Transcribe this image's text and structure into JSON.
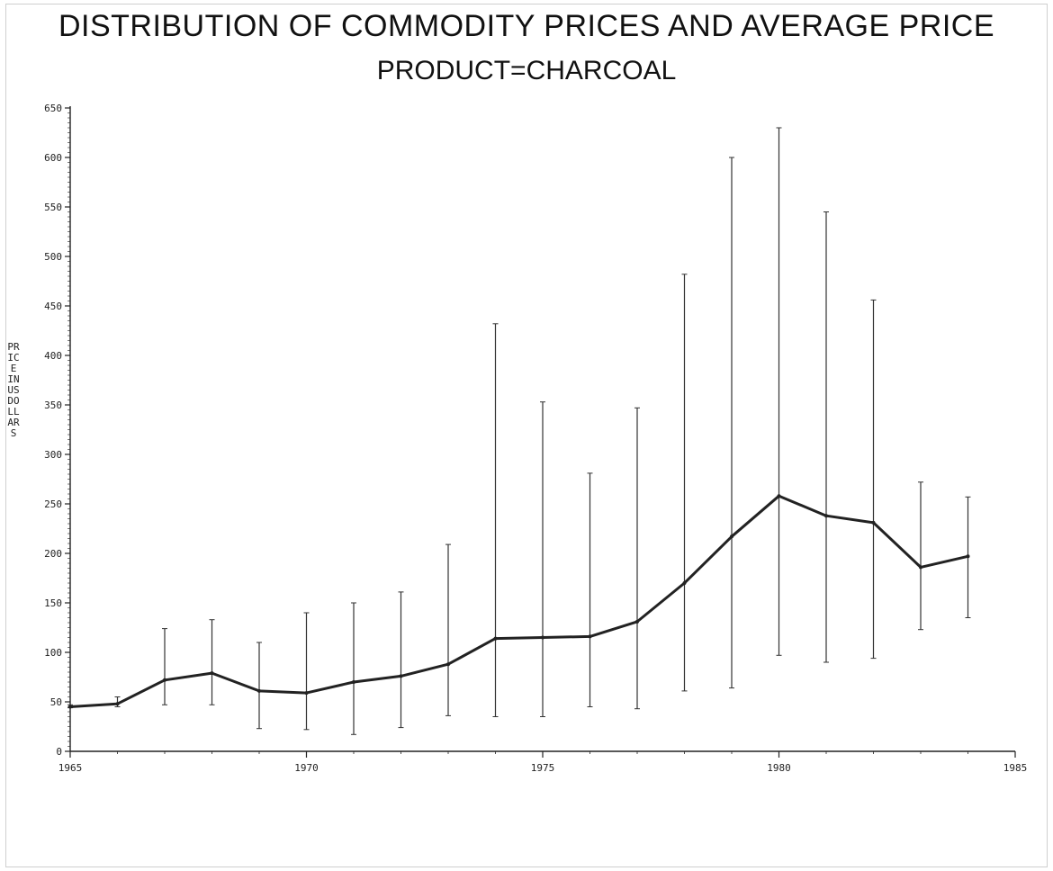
{
  "chart_data": {
    "type": "line",
    "title": "DISTRIBUTION OF COMMODITY PRICES AND AVERAGE PRICE",
    "subtitle": "PRODUCT=CHARCOAL",
    "ylabel": "PRICE IN US DOLLARS",
    "xlabel": "",
    "xlim": [
      1965,
      1985
    ],
    "ylim": [
      0,
      650
    ],
    "x_ticks": [
      1965,
      1970,
      1975,
      1980,
      1985
    ],
    "y_ticks": [
      0,
      50,
      100,
      150,
      200,
      250,
      300,
      350,
      400,
      450,
      500,
      550,
      600,
      650
    ],
    "series": [
      {
        "x": [
          1965,
          1966,
          1967,
          1968,
          1969,
          1970,
          1971,
          1972,
          1973,
          1974,
          1975,
          1976,
          1977,
          1978,
          1979,
          1980,
          1981,
          1982,
          1983,
          1984
        ],
        "values": [
          45,
          48,
          72,
          79,
          61,
          59,
          70,
          76,
          88,
          114,
          115,
          116,
          131,
          170,
          217,
          258,
          238,
          231,
          186,
          197
        ]
      }
    ],
    "ranges": [
      {
        "x": 1965,
        "min": 44,
        "max": 47
      },
      {
        "x": 1966,
        "min": 45,
        "max": 55
      },
      {
        "x": 1967,
        "min": 47,
        "max": 124
      },
      {
        "x": 1968,
        "min": 47,
        "max": 133
      },
      {
        "x": 1969,
        "min": 23,
        "max": 110
      },
      {
        "x": 1970,
        "min": 22,
        "max": 140
      },
      {
        "x": 1971,
        "min": 17,
        "max": 150
      },
      {
        "x": 1972,
        "min": 24,
        "max": 161
      },
      {
        "x": 1973,
        "min": 36,
        "max": 209
      },
      {
        "x": 1974,
        "min": 35,
        "max": 432
      },
      {
        "x": 1975,
        "min": 35,
        "max": 353
      },
      {
        "x": 1976,
        "min": 45,
        "max": 281
      },
      {
        "x": 1977,
        "min": 43,
        "max": 347
      },
      {
        "x": 1978,
        "min": 61,
        "max": 482
      },
      {
        "x": 1979,
        "min": 64,
        "max": 600
      },
      {
        "x": 1980,
        "min": 97,
        "max": 630
      },
      {
        "x": 1981,
        "min": 90,
        "max": 545
      },
      {
        "x": 1982,
        "min": 94,
        "max": 456
      },
      {
        "x": 1983,
        "min": 123,
        "max": 272
      },
      {
        "x": 1984,
        "min": 135,
        "max": 257
      }
    ],
    "grid": false,
    "colors": {
      "line": "#222222",
      "range": "#333333",
      "axis": "#222222"
    }
  }
}
